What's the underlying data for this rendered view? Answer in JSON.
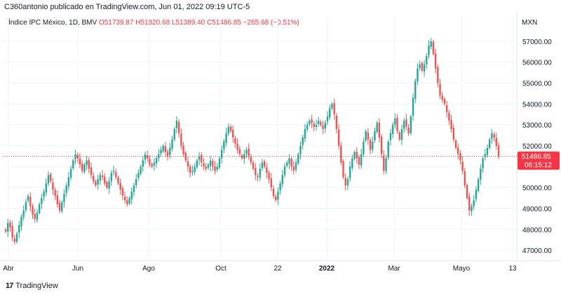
{
  "header": {
    "caption": "C360antonio publicado en TradingView.com, Jun 01, 2022 09:19 UTC-5"
  },
  "legend": {
    "symbol": "Índice IPC México, 1D, BMV",
    "open": "O51739.87",
    "high": "H51820.68",
    "low": "L51389.40",
    "close": "C51486.85",
    "change": "−265.68 (−0.51%)"
  },
  "footer": {
    "brand_text": "TradingView",
    "brand_logo": "17"
  },
  "colors": {
    "up": "#26a69a",
    "down": "#ef5350",
    "grid": "#f0f3fa",
    "price_line": "#f23645",
    "price_label_bg": "#f23645"
  },
  "chart_data": {
    "type": "candlestick",
    "y_axis_unit": "MXN",
    "ylim": [
      46500,
      57500
    ],
    "y_ticks": [
      47000,
      48000,
      49000,
      50000,
      51000,
      52000,
      53000,
      54000,
      55000,
      56000,
      57000
    ],
    "y_tick_labels": [
      "47000.00",
      "48000.00",
      "49000.00",
      "50000.00",
      "51000.00",
      "52000.00",
      "53000.00",
      "54000.00",
      "55000.00",
      "56000.00",
      "57000.00"
    ],
    "x_ticks": [
      "Abr",
      "Jun",
      "Ago",
      "Oct",
      "22",
      "2022",
      "Mar",
      "Mayo",
      "13"
    ],
    "last_price": 51486.85,
    "last_price_label": "51486.85",
    "countdown_label": "06:15:12",
    "candles_approx_close": [
      47900,
      48300,
      48100,
      47600,
      47400,
      47800,
      48200,
      48600,
      48900,
      49300,
      49600,
      49100,
      48700,
      48500,
      48800,
      49200,
      49500,
      49800,
      50200,
      50600,
      50300,
      49900,
      49600,
      49200,
      48900,
      49300,
      49700,
      50100,
      50500,
      50900,
      51300,
      51600,
      51400,
      51100,
      50800,
      51100,
      51300,
      50900,
      50600,
      50300,
      50100,
      50400,
      50600,
      50500,
      50200,
      50000,
      50300,
      50700,
      50800,
      50500,
      50200,
      49900,
      49600,
      49400,
      49200,
      49500,
      49800,
      50100,
      50400,
      50700,
      51000,
      51300,
      51600,
      51400,
      51100,
      51000,
      51200,
      51400,
      51600,
      51800,
      52000,
      51700,
      51500,
      51900,
      52300,
      52800,
      53200,
      52600,
      52000,
      51600,
      51300,
      51000,
      50700,
      50800,
      51000,
      51300,
      51500,
      51200,
      51000,
      50900,
      51100,
      51300,
      51000,
      50800,
      51000,
      51400,
      51800,
      52200,
      52600,
      52900,
      52700,
      52400,
      52100,
      51800,
      51600,
      51400,
      51600,
      51800,
      51500,
      51200,
      50900,
      50600,
      50500,
      50900,
      51200,
      51000,
      50700,
      50400,
      50000,
      49600,
      49400,
      49800,
      50200,
      50600,
      51000,
      51200,
      51400,
      51000,
      50800,
      51200,
      51600,
      52000,
      52400,
      52800,
      53000,
      53200,
      53100,
      52900,
      53000,
      53200,
      53000,
      52800,
      53100,
      53400,
      53800,
      54000,
      53500,
      52800,
      52000,
      51200,
      50500,
      50100,
      50400,
      51000,
      51400,
      51700,
      51400,
      51100,
      51600,
      52200,
      52700,
      52300,
      51800,
      52200,
      52700,
      53100,
      52400,
      51600,
      50800,
      51400,
      52200,
      52600,
      53000,
      53300,
      52700,
      52300,
      52800,
      53200,
      52900,
      52600,
      53400,
      54300,
      55100,
      55700,
      55900,
      55600,
      55900,
      56300,
      56800,
      57000,
      56400,
      55700,
      55000,
      54400,
      54200,
      54000,
      53600,
      53200,
      52800,
      52300,
      51900,
      51600,
      51300,
      50800,
      50100,
      49500,
      48900,
      49100,
      49400,
      49900,
      50400,
      50900,
      51400,
      51600,
      51900,
      52300,
      52600,
      52400,
      52000,
      51500
    ]
  }
}
